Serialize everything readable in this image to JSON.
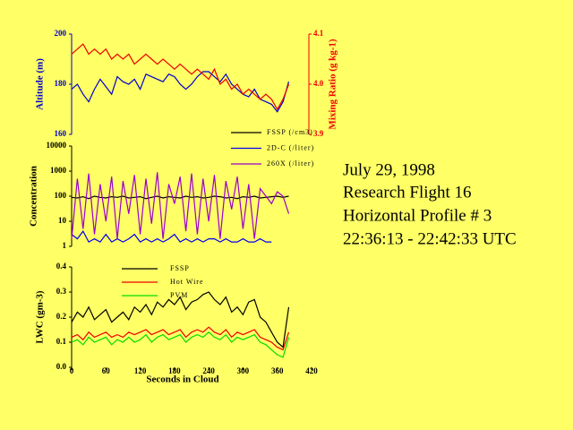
{
  "chart_data": [
    {
      "type": "line",
      "ylabel": "Altitude (m)",
      "y2label": "Mixing Ratio (g kg-1)",
      "x": [
        0,
        10,
        20,
        30,
        40,
        50,
        60,
        70,
        80,
        90,
        100,
        110,
        120,
        130,
        140,
        150,
        160,
        170,
        180,
        190,
        200,
        210,
        220,
        230,
        240,
        250,
        260,
        270,
        280,
        290,
        300,
        310,
        320,
        330,
        340,
        350,
        360,
        370,
        380
      ],
      "xlim": [
        0,
        420
      ],
      "ylim": [
        160,
        200
      ],
      "yticks": [
        160,
        180,
        200
      ],
      "y2lim": [
        3.9,
        4.1
      ],
      "y2ticks": [
        3.9,
        {
          "value": 4.0,
          "label": "4.0"
        },
        4.1
      ],
      "series": [
        {
          "color": "#0000cc",
          "values": [
            178,
            180,
            176,
            173,
            178,
            182,
            179,
            176,
            183,
            181,
            180,
            182,
            178,
            184,
            183,
            182,
            181,
            184,
            183,
            180,
            178,
            180,
            183,
            185,
            185,
            183,
            181,
            184,
            180,
            178,
            176,
            175,
            178,
            174,
            173,
            172,
            169,
            173,
            181
          ]
        },
        {
          "color": "#ee0000",
          "axis": "y2",
          "values": [
            4.06,
            4.07,
            4.08,
            4.06,
            4.07,
            4.06,
            4.07,
            4.05,
            4.06,
            4.05,
            4.06,
            4.04,
            4.05,
            4.06,
            4.05,
            4.04,
            4.05,
            4.04,
            4.03,
            4.04,
            4.03,
            4.02,
            4.03,
            4.02,
            4.01,
            4.03,
            4.0,
            4.01,
            3.99,
            4.0,
            3.98,
            3.99,
            3.98,
            3.97,
            3.98,
            3.97,
            3.95,
            3.97,
            4.0
          ]
        }
      ]
    },
    {
      "type": "line",
      "ylabel": "Concentration",
      "log_scale": true,
      "x": [
        0,
        10,
        20,
        30,
        40,
        50,
        60,
        70,
        80,
        90,
        100,
        110,
        120,
        130,
        140,
        150,
        160,
        170,
        180,
        190,
        200,
        210,
        220,
        230,
        240,
        250,
        260,
        270,
        280,
        290,
        300,
        310,
        320,
        330,
        340,
        350,
        360,
        370,
        380
      ],
      "xlim": [
        0,
        420
      ],
      "ylim": [
        1,
        10000
      ],
      "yticks": [
        1,
        10,
        100,
        1000,
        10000
      ],
      "series": [
        {
          "name": "FSSP (/cm3)",
          "color": "#000000",
          "values": [
            90,
            85,
            95,
            80,
            100,
            90,
            85,
            95,
            90,
            100,
            85,
            90,
            95,
            80,
            90,
            100,
            85,
            95,
            90,
            85,
            100,
            90,
            95,
            85,
            90,
            100,
            95,
            85,
            90,
            80,
            95,
            90,
            100,
            85,
            90,
            95,
            100,
            90,
            100
          ]
        },
        {
          "name": "2D-C (/liter)",
          "color": "#0000ee",
          "values": [
            3,
            2,
            4,
            1.5,
            2,
            1.5,
            3,
            1.5,
            2,
            1.5,
            2,
            3,
            1.5,
            2,
            1.5,
            2,
            1.5,
            2,
            3,
            1.5,
            2,
            1.5,
            2,
            1.5,
            2,
            2,
            1.5,
            2,
            1.5,
            1.5,
            2,
            1.5,
            1.5,
            2,
            1.5,
            1.5,
            null,
            null,
            null
          ]
        },
        {
          "name": "260X (/liter)",
          "color": "#9900cc",
          "values": [
            2,
            500,
            5,
            800,
            3,
            300,
            10,
            600,
            2,
            400,
            20,
            700,
            3,
            500,
            8,
            900,
            2,
            300,
            50,
            600,
            4,
            800,
            3,
            500,
            10,
            700,
            2,
            400,
            30,
            600,
            5,
            300,
            2,
            200,
            100,
            50,
            150,
            100,
            20
          ]
        }
      ]
    },
    {
      "type": "line",
      "ylabel": "LWC (gm-3)",
      "xlabel": "Seconds in Cloud",
      "x": [
        0,
        10,
        20,
        30,
        40,
        50,
        60,
        70,
        80,
        90,
        100,
        110,
        120,
        130,
        140,
        150,
        160,
        170,
        180,
        190,
        200,
        210,
        220,
        230,
        240,
        250,
        260,
        270,
        280,
        290,
        300,
        310,
        320,
        330,
        340,
        350,
        360,
        370,
        380
      ],
      "xlim": [
        0,
        420
      ],
      "xticks": [
        0,
        60,
        120,
        180,
        240,
        300,
        360,
        420
      ],
      "ylim": [
        0,
        0.4
      ],
      "yticks": [
        {
          "value": 0,
          "label": "0.0"
        },
        0.1,
        0.2,
        0.3,
        0.4
      ],
      "series": [
        {
          "name": "FSSP",
          "color": "#000000",
          "values": [
            0.18,
            0.22,
            0.2,
            0.24,
            0.19,
            0.21,
            0.23,
            0.18,
            0.2,
            0.22,
            0.19,
            0.24,
            0.22,
            0.25,
            0.21,
            0.26,
            0.24,
            0.27,
            0.25,
            0.28,
            0.23,
            0.26,
            0.27,
            0.29,
            0.3,
            0.27,
            0.25,
            0.28,
            0.22,
            0.24,
            0.21,
            0.26,
            0.27,
            0.2,
            0.18,
            0.14,
            0.1,
            0.08,
            0.24
          ]
        },
        {
          "name": "Hot Wire",
          "color": "#ee0000",
          "values": [
            0.12,
            0.13,
            0.11,
            0.14,
            0.12,
            0.13,
            0.14,
            0.12,
            0.13,
            0.12,
            0.14,
            0.13,
            0.14,
            0.15,
            0.13,
            0.14,
            0.15,
            0.13,
            0.14,
            0.15,
            0.12,
            0.14,
            0.15,
            0.14,
            0.16,
            0.14,
            0.13,
            0.15,
            0.12,
            0.14,
            0.13,
            0.14,
            0.15,
            0.12,
            0.11,
            0.1,
            0.08,
            0.07,
            0.14
          ]
        },
        {
          "name": "PVM",
          "color": "#00dd00",
          "values": [
            0.1,
            0.11,
            0.09,
            0.12,
            0.1,
            0.11,
            0.12,
            0.09,
            0.11,
            0.1,
            0.12,
            0.1,
            0.11,
            0.13,
            0.1,
            0.12,
            0.13,
            0.11,
            0.12,
            0.13,
            0.1,
            0.12,
            0.13,
            0.12,
            0.14,
            0.12,
            0.11,
            0.13,
            0.1,
            0.12,
            0.11,
            0.12,
            0.13,
            0.1,
            0.09,
            0.07,
            0.05,
            0.04,
            0.12
          ]
        }
      ]
    }
  ],
  "info": {
    "lines": [
      "July 29, 1998",
      "Research Flight 16",
      "Horizontal Profile # 3",
      "22:36:13 - 22:42:33 UTC"
    ]
  }
}
